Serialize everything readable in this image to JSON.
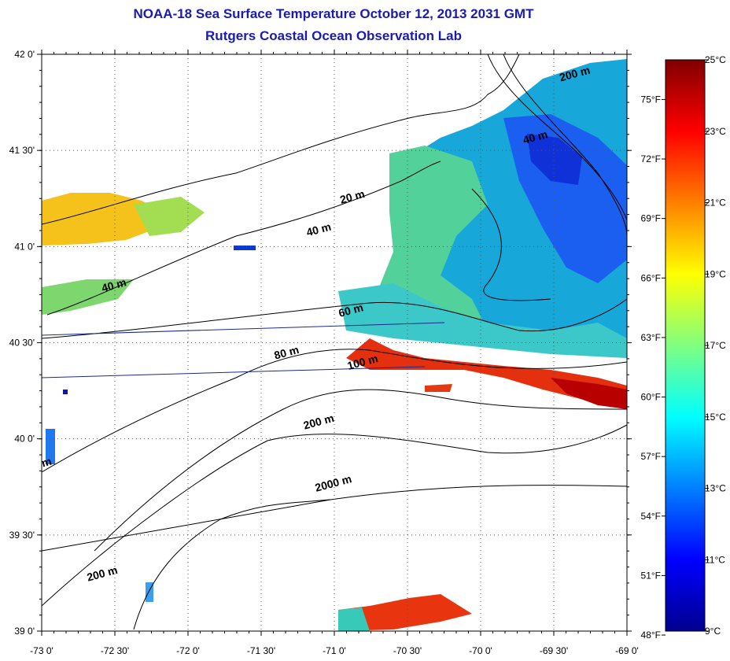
{
  "title": "NOAA-18 Sea Surface Temperature October 12, 2013 2031 GMT",
  "subtitle": "Rutgers Coastal Ocean Observation Lab",
  "lat_ticks": [
    {
      "value": 42.0,
      "label": "42 0'"
    },
    {
      "value": 41.5,
      "label": "41 30'"
    },
    {
      "value": 41.0,
      "label": "41 0'"
    },
    {
      "value": 40.5,
      "label": "40 30'"
    },
    {
      "value": 40.0,
      "label": "40 0'"
    },
    {
      "value": 39.5,
      "label": "39 30'"
    },
    {
      "value": 39.0,
      "label": "39 0'"
    }
  ],
  "lon_ticks": [
    {
      "value": -73.0,
      "label": "-73 0'"
    },
    {
      "value": -72.5,
      "label": "-72 30'"
    },
    {
      "value": -72.0,
      "label": "-72 0'"
    },
    {
      "value": -71.5,
      "label": "-71 30'"
    },
    {
      "value": -71.0,
      "label": "-71 0'"
    },
    {
      "value": -70.5,
      "label": "-70 30'"
    },
    {
      "value": -70.0,
      "label": "-70 0'"
    },
    {
      "value": -69.5,
      "label": "-69 30'"
    },
    {
      "value": -69.0,
      "label": "-69 0'"
    }
  ],
  "colorbar_celsius": [
    {
      "value": 25,
      "label": "25°C"
    },
    {
      "value": 23,
      "label": "23°C"
    },
    {
      "value": 21,
      "label": "21°C"
    },
    {
      "value": 19,
      "label": "19°C"
    },
    {
      "value": 17,
      "label": "17°C"
    },
    {
      "value": 15,
      "label": "15°C"
    },
    {
      "value": 13,
      "label": "13°C"
    },
    {
      "value": 11,
      "label": "11°C"
    },
    {
      "value": 9,
      "label": "9°C"
    }
  ],
  "colorbar_fahrenheit": [
    {
      "value": 75,
      "label": "75°F"
    },
    {
      "value": 72,
      "label": "72°F"
    },
    {
      "value": 69,
      "label": "69°F"
    },
    {
      "value": 66,
      "label": "66°F"
    },
    {
      "value": 63,
      "label": "63°F"
    },
    {
      "value": 60,
      "label": "60°F"
    },
    {
      "value": 57,
      "label": "57°F"
    },
    {
      "value": 54,
      "label": "54°F"
    },
    {
      "value": 51,
      "label": "51°F"
    },
    {
      "value": 48,
      "label": "48°F"
    }
  ],
  "colorbar_range_c": [
    9,
    25
  ],
  "depth_labels": [
    {
      "text": "200 m",
      "lon": -69.35,
      "lat": 41.88
    },
    {
      "text": "40 m",
      "lon": -69.62,
      "lat": 41.55
    },
    {
      "text": "20 m",
      "lon": -70.87,
      "lat": 41.24
    },
    {
      "text": "40 m",
      "lon": -71.1,
      "lat": 41.07
    },
    {
      "text": "40 m",
      "lon": -72.5,
      "lat": 40.78
    },
    {
      "text": "60 m",
      "lon": -70.88,
      "lat": 40.65
    },
    {
      "text": "80 m",
      "lon": -71.32,
      "lat": 40.43
    },
    {
      "text": "100 m",
      "lon": -70.8,
      "lat": 40.38
    },
    {
      "text": "200 m",
      "lon": -71.1,
      "lat": 40.07
    },
    {
      "text": "2000 m",
      "lon": -71.0,
      "lat": 39.75
    },
    {
      "text": "200 m",
      "lon": -72.58,
      "lat": 39.28
    },
    {
      "text": "m",
      "lon": -72.96,
      "lat": 39.86
    }
  ]
}
